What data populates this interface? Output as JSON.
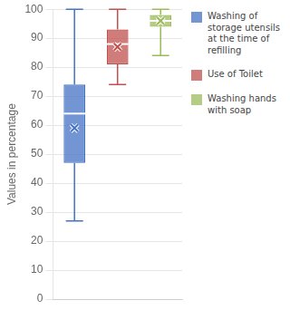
{
  "chart_data": {
    "type": "box",
    "ylabel": "Values in percentage",
    "series": [
      {
        "name": "Washing of\nstorage utensils\nat the time of\nrefilling",
        "color": "#4472C4",
        "whisker_low": 27,
        "q1": 47,
        "median": 64,
        "mean": 59,
        "q3": 74,
        "whisker_high": 100
      },
      {
        "name": "Use of Toilet",
        "color": "#C0504D",
        "whisker_low": 74,
        "q1": 81,
        "median": 88,
        "mean": 87,
        "q3": 93,
        "whisker_high": 100
      },
      {
        "name": "Washing hands\nwith soap",
        "color": "#9BBB59",
        "whisker_low": 84,
        "q1": 94,
        "median": 96,
        "mean": 96,
        "q3": 98,
        "whisker_high": 100
      }
    ],
    "ylim": [
      0,
      100
    ],
    "yticks": [
      0,
      10,
      20,
      30,
      40,
      50,
      60,
      70,
      80,
      90,
      100
    ],
    "grid": true,
    "legend": "right",
    "marker": "x"
  }
}
